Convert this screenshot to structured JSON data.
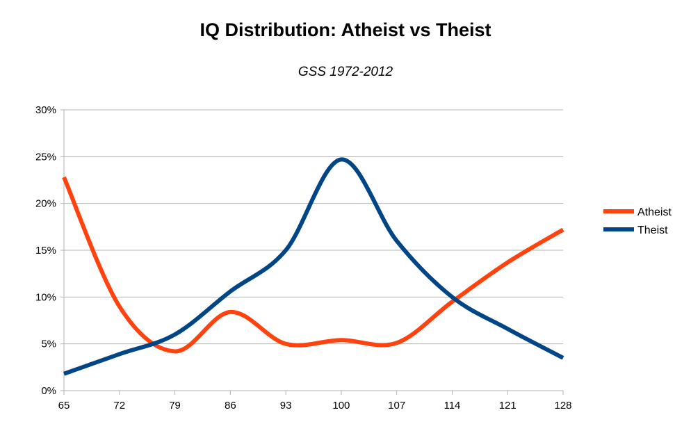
{
  "chart_data": {
    "type": "line",
    "title": "IQ Distribution: Atheist vs Theist",
    "subtitle": "GSS 1972-2012",
    "xlabel": "",
    "ylabel": "",
    "categories": [
      "65",
      "72",
      "79",
      "86",
      "93",
      "100",
      "107",
      "114",
      "121",
      "128"
    ],
    "y_tick_labels": [
      "0%",
      "5%",
      "10%",
      "15%",
      "20%",
      "25%",
      "30%"
    ],
    "ylim": [
      0,
      30
    ],
    "grid": true,
    "smooth": true,
    "legend_position": "right",
    "series": [
      {
        "name": "Atheist",
        "color": "#ff420e",
        "values": [
          22.8,
          9.0,
          4.2,
          8.4,
          5.0,
          5.4,
          5.1,
          9.5,
          13.7,
          17.2
        ]
      },
      {
        "name": "Theist",
        "color": "#004586",
        "values": [
          1.8,
          3.9,
          6.0,
          10.6,
          15.0,
          24.7,
          16.0,
          10.0,
          6.6,
          3.5
        ]
      }
    ]
  }
}
